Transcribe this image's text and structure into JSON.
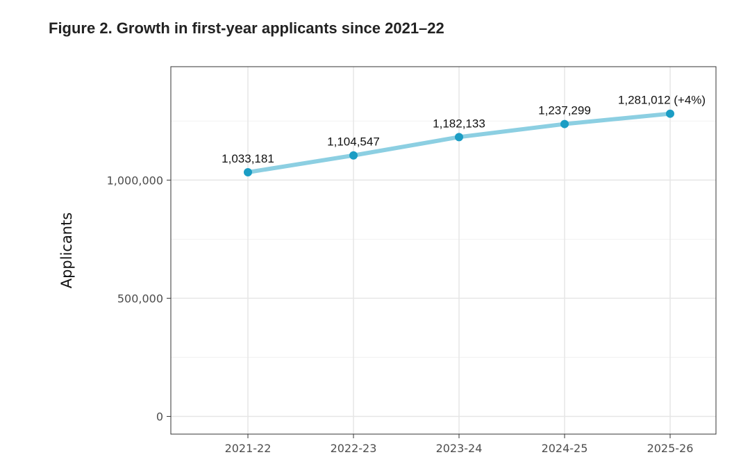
{
  "chart_data": {
    "type": "line",
    "title": "Figure 2. Growth in first-year applicants since 2021–22",
    "xlabel": "",
    "ylabel": "Applicants",
    "categories": [
      "2021-22",
      "2022-23",
      "2023-24",
      "2024-25",
      "2025-26"
    ],
    "series": [
      {
        "name": "Applicants",
        "values": [
          1033181,
          1104547,
          1182133,
          1237299,
          1281012
        ]
      }
    ],
    "data_labels": [
      "1,033,181",
      "1,104,547",
      "1,182,133",
      "1,237,299",
      "1,281,012 (+4%)"
    ],
    "y_ticks": [
      0,
      500000,
      1000000
    ],
    "y_tick_labels": [
      "0",
      "500,000",
      "1,000,000"
    ],
    "ylim": [
      -75000,
      1480000
    ],
    "grid": true,
    "colors": {
      "line": "#8ccfe2",
      "point": "#1b9dc4",
      "grid": "#e6e6e6",
      "panel_border": "#333333"
    }
  }
}
